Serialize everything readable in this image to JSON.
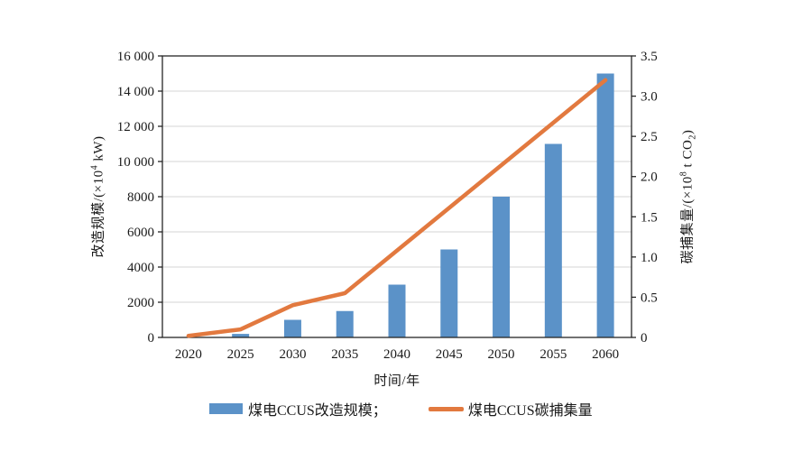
{
  "chart_data": {
    "type": "bar+line",
    "categories": [
      "2020",
      "2025",
      "2030",
      "2035",
      "2040",
      "2045",
      "2050",
      "2055",
      "2060"
    ],
    "series": [
      {
        "name": "煤电CCUS改造规模",
        "type": "bar",
        "axis": "left",
        "color": "#5B92C8",
        "values": [
          0,
          200,
          1000,
          1500,
          3000,
          5000,
          8000,
          11000,
          15000
        ]
      },
      {
        "name": "煤电CCUS碳捕集量",
        "type": "line",
        "axis": "right",
        "color": "#E2793F",
        "values": [
          0.02,
          0.1,
          0.4,
          0.55,
          1.08,
          1.61,
          2.14,
          2.67,
          3.2
        ]
      }
    ],
    "xlabel": "时间/年",
    "left_axis": {
      "label": "改造规模/(×10⁴ kW)",
      "min": 0,
      "max": 16000,
      "step": 2000,
      "tick_labels": [
        "0",
        "2000",
        "4000",
        "6000",
        "8000",
        "10 000",
        "12 000",
        "14 000",
        "16 000"
      ]
    },
    "right_axis": {
      "label": "碳捕集量/(×10⁸ t CO₂)",
      "min": 0,
      "max": 3.5,
      "step": 0.5,
      "tick_labels": [
        "0",
        "0.5",
        "1.0",
        "1.5",
        "2.0",
        "2.5",
        "3.0",
        "3.5"
      ]
    },
    "grid": true,
    "legend_position": "bottom",
    "gridline_color": "#D4D4D4",
    "frame_color": "#262626"
  },
  "left_axis_title": {
    "prefix": "改造规模/(×10",
    "sup": "4",
    "suffix": " kW)"
  },
  "right_axis_title": {
    "prefix": "碳捕集量/(×10",
    "sup": "8",
    "mid": " t CO",
    "sub": "2",
    "suffix": ")"
  },
  "x_axis_title": "时间/年",
  "legend": {
    "items": [
      {
        "label": "煤电CCUS改造规模；",
        "swatch": "bar",
        "color": "#5B92C8"
      },
      {
        "label": "煤电CCUS碳捕集量",
        "swatch": "line",
        "color": "#E2793F"
      }
    ]
  }
}
